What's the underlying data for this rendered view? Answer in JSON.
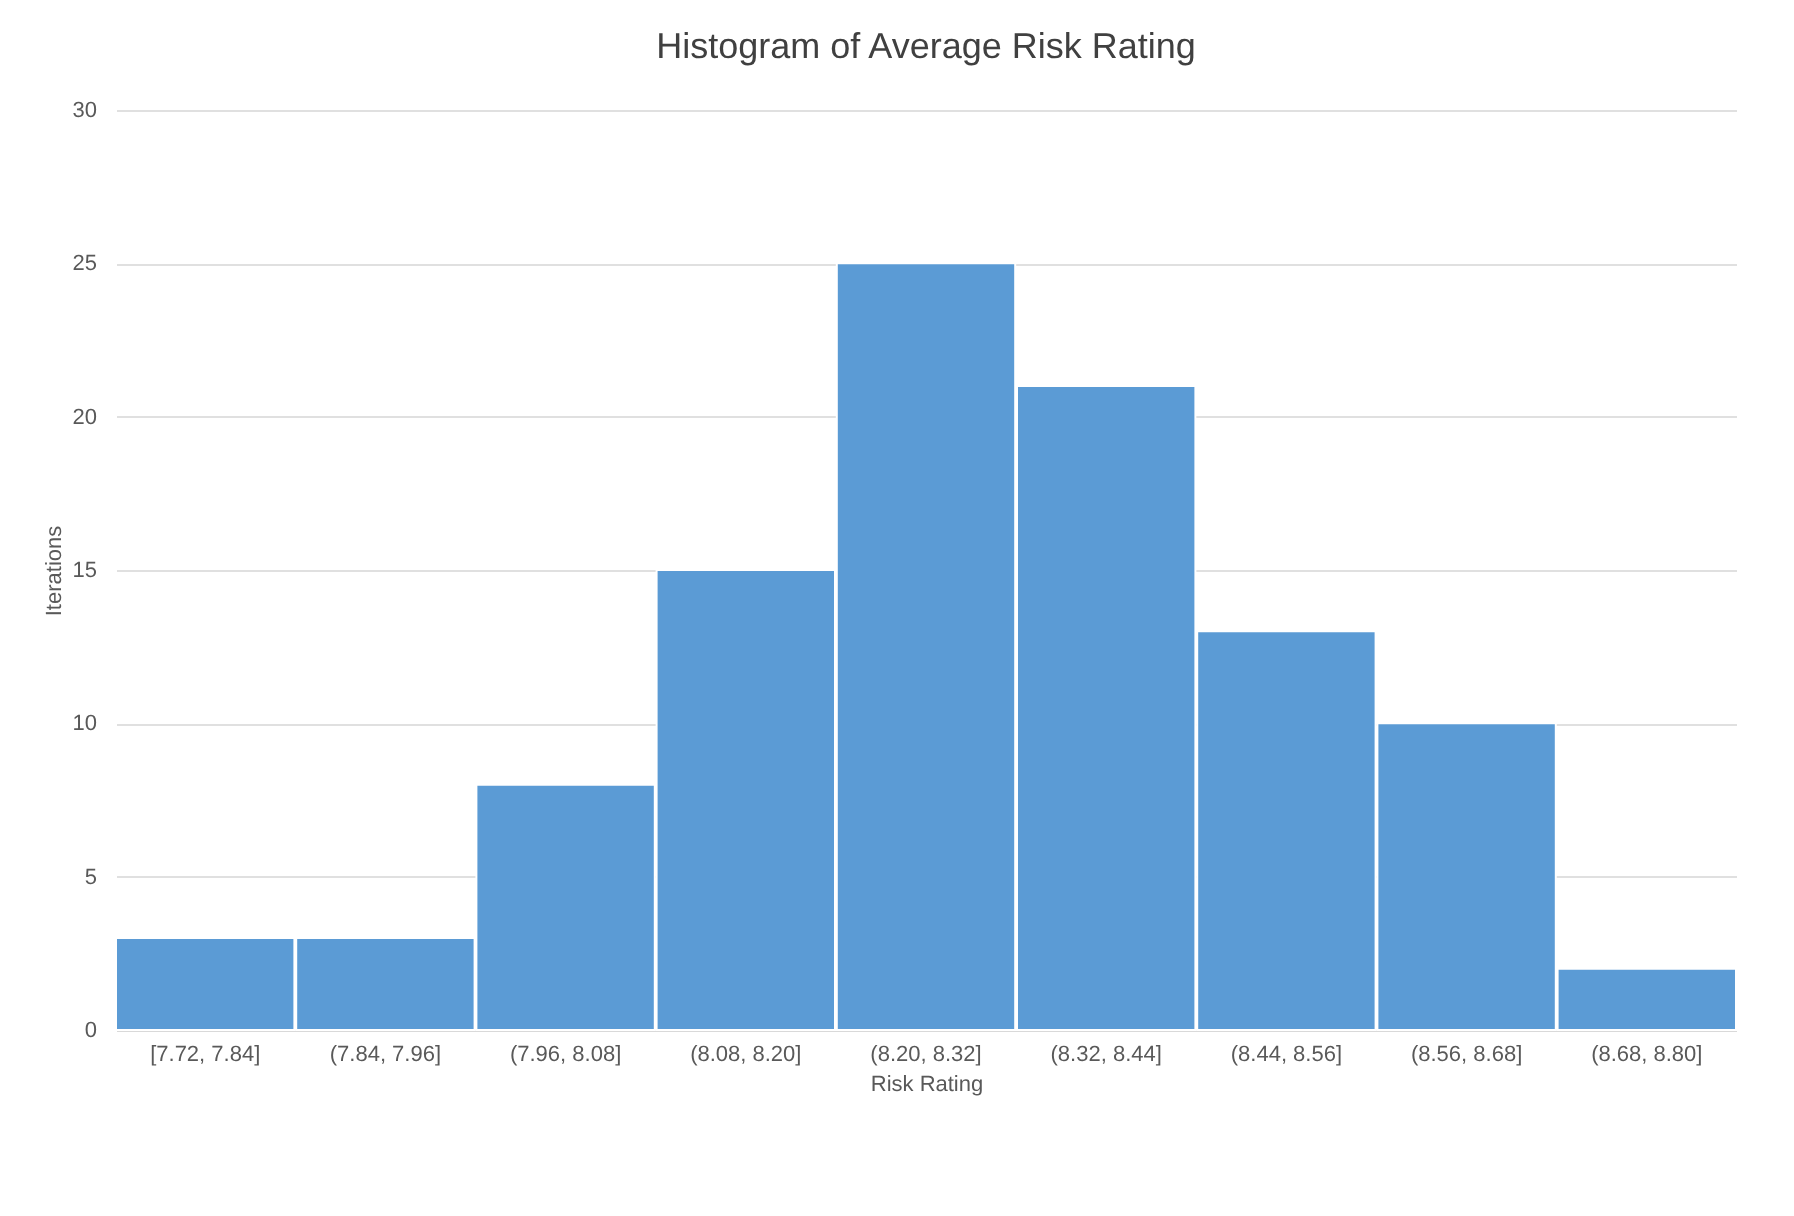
{
  "chart_data": {
    "type": "bar",
    "title": "Histogram of Average Risk Rating",
    "xlabel": "Risk Rating",
    "ylabel": "Iterations",
    "categories": [
      "[7.72, 7.84]",
      "(7.84, 7.96]",
      "(7.96, 8.08]",
      "(8.08, 8.20]",
      "(8.20, 8.32]",
      "(8.32, 8.44]",
      "(8.44, 8.56]",
      "(8.56, 8.68]",
      "(8.68, 8.80]"
    ],
    "values": [
      3,
      3,
      8,
      15,
      25,
      21,
      13,
      10,
      2
    ],
    "color": "#5b9bd5",
    "ylim": [
      0,
      30
    ],
    "yticks": [
      0,
      5,
      10,
      15,
      20,
      25,
      30
    ],
    "grid": "y"
  }
}
